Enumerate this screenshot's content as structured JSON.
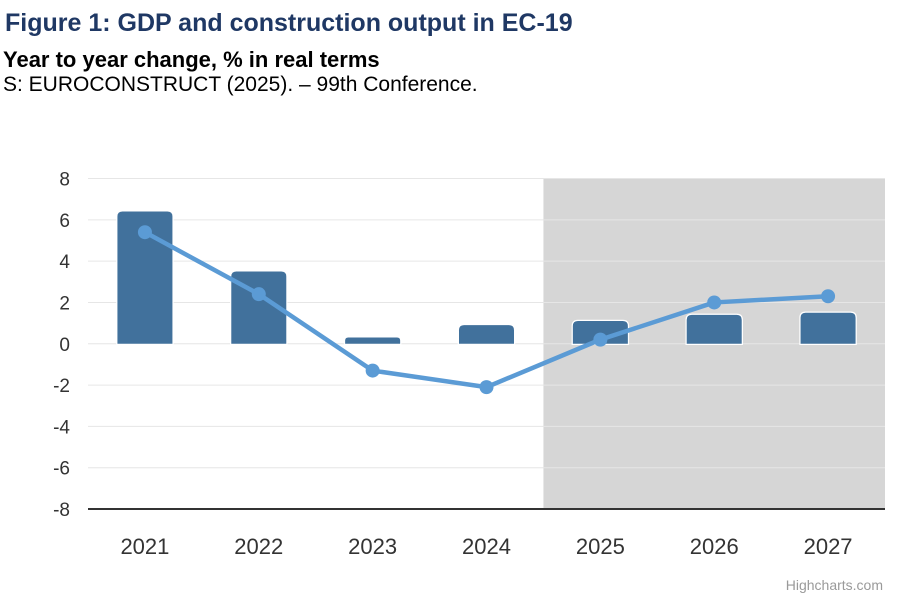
{
  "header": {
    "title": "Figure 1: GDP and construction output in EC-19",
    "subtitle": "Year to year change, % in real terms",
    "source": "S: EUROCONSTRUCT (2025). – 99th Conference."
  },
  "credits": {
    "label": "Highcharts.com"
  },
  "chart_data": {
    "type": "bar",
    "combo": "column+line",
    "categories": [
      "2021",
      "2022",
      "2023",
      "2024",
      "2025",
      "2026",
      "2027"
    ],
    "series": [
      {
        "type": "column",
        "color": "#41719C",
        "values": [
          6.4,
          3.5,
          0.3,
          0.9,
          1.1,
          1.4,
          1.5
        ]
      },
      {
        "type": "line",
        "color": "#5B9BD5",
        "values": [
          5.4,
          2.4,
          -1.3,
          -2.1,
          0.2,
          2.0,
          2.3
        ]
      }
    ],
    "ylim": [
      -8,
      8
    ],
    "ytick_step": 2,
    "ytick_labels": [
      "8",
      "6",
      "4",
      "2",
      "0",
      "-2",
      "-4",
      "-6",
      "-8"
    ],
    "forecast_band": {
      "from_category": "2025",
      "color": "#d6d6d6"
    },
    "grid": true,
    "legend": false,
    "gridline_color": "#e6e6e6",
    "axis_line_color": "#333333",
    "label_color": "#333333"
  }
}
